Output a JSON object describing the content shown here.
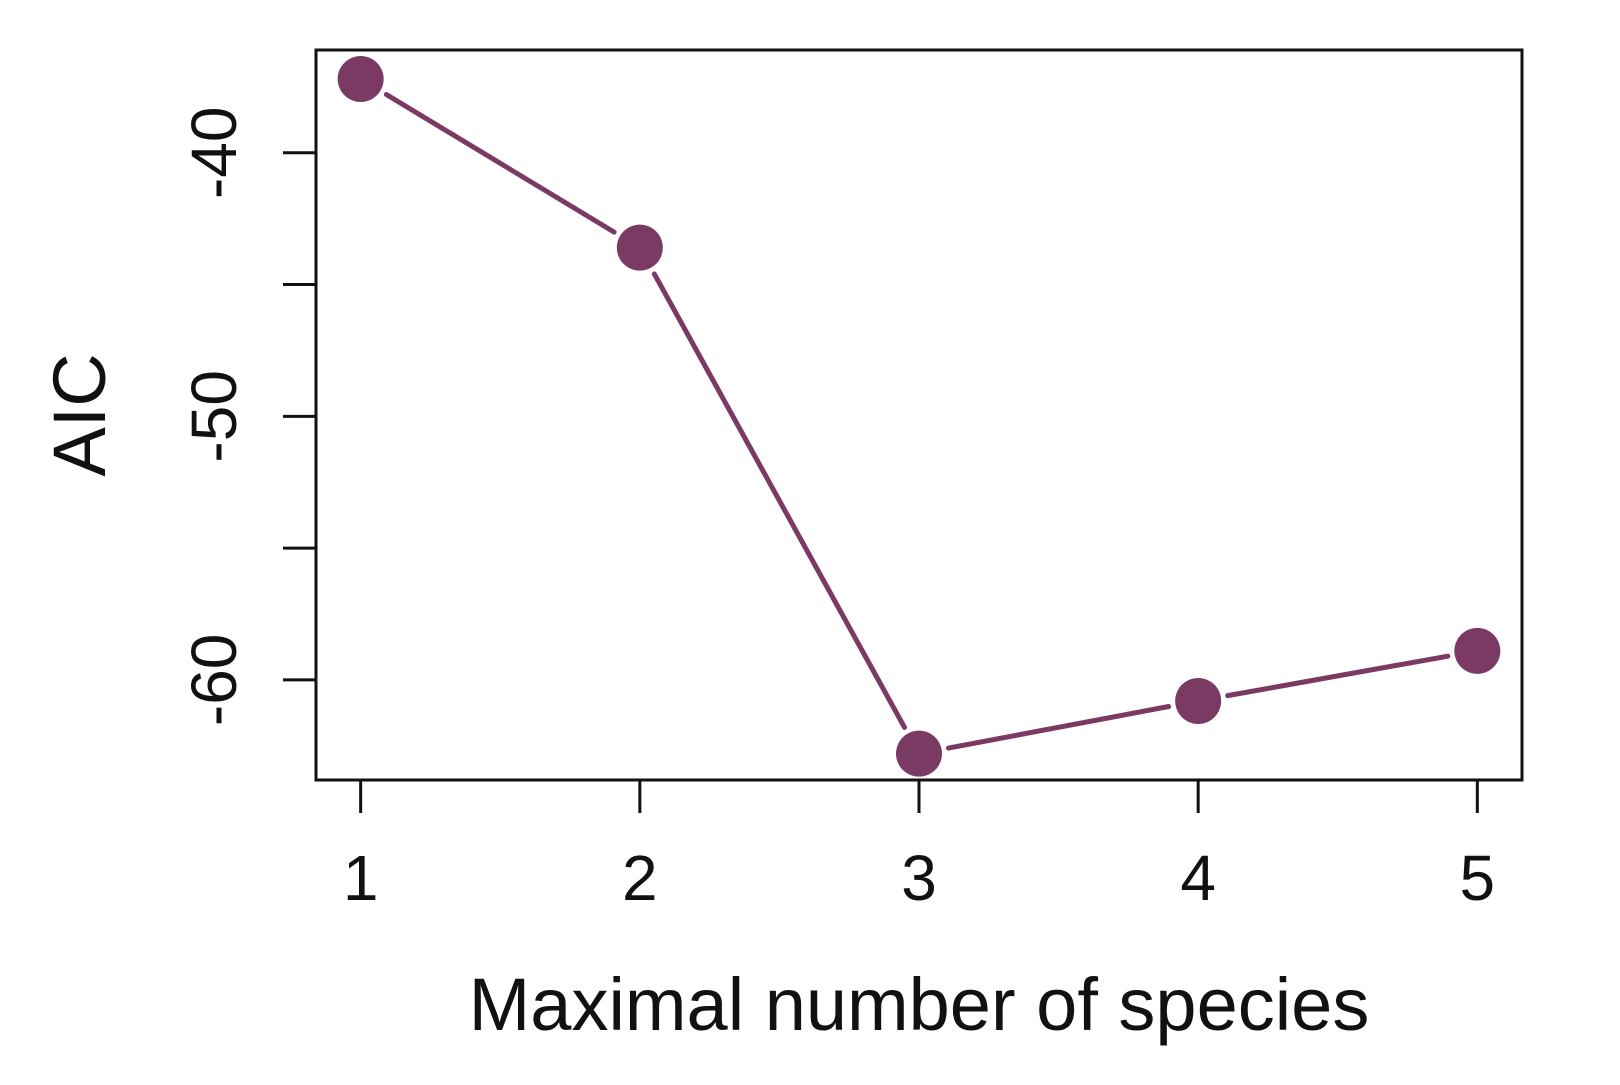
{
  "chart_data": {
    "type": "line",
    "title": "",
    "xlabel": "Maximal number of species",
    "ylabel": "AIC",
    "x": [
      1,
      2,
      3,
      4,
      5
    ],
    "series": [
      {
        "values": [
          -37.2,
          -43.6,
          -62.8,
          -60.8,
          -58.9
        ]
      }
    ],
    "xlim": [
      0.84,
      5.16
    ],
    "ylim": [
      -63.8,
      -36.1
    ],
    "x_ticks": [
      1,
      2,
      3,
      4,
      5
    ],
    "x_tick_labels": [
      "1",
      "2",
      "3",
      "4",
      "5"
    ],
    "y_ticks": [
      -40,
      -45,
      -50,
      -55,
      -60
    ],
    "y_tick_labels": [
      "-40",
      "",
      "-50",
      "",
      "-60"
    ],
    "colors": {
      "series": "#7b3a63",
      "axis": "#111111"
    },
    "grid": false,
    "markers": "filled-circle"
  }
}
